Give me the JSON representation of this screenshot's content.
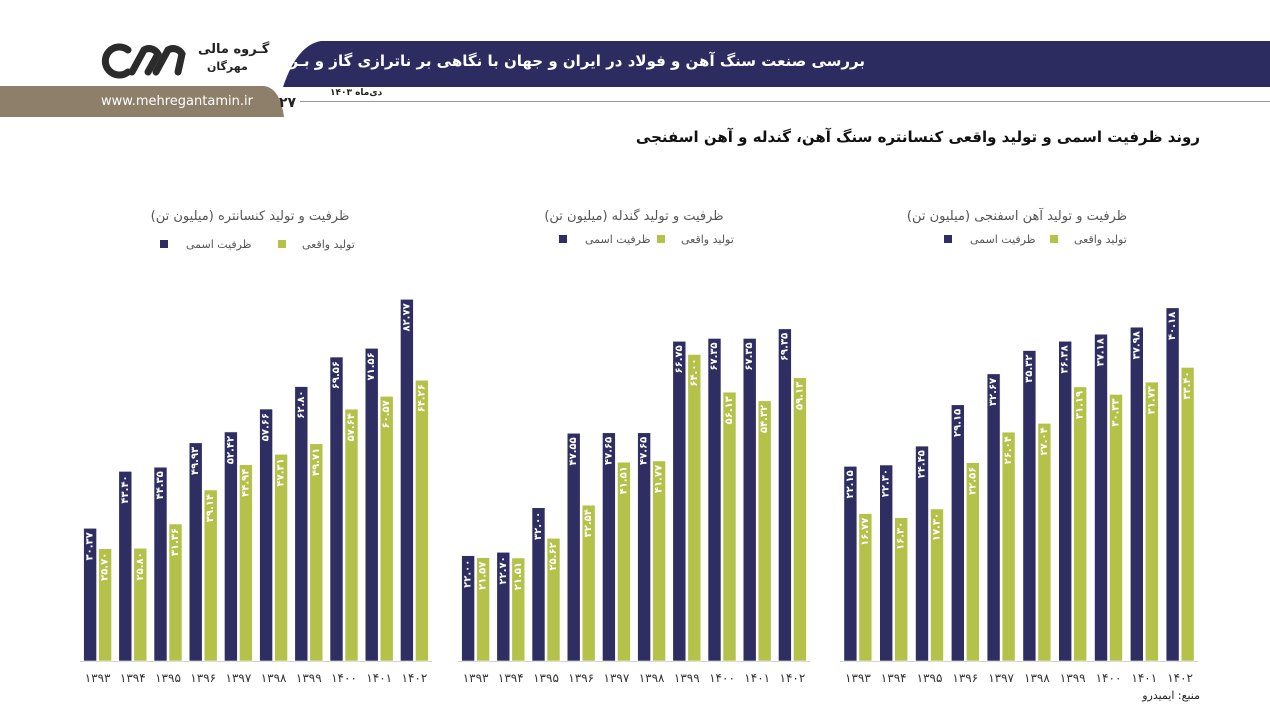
{
  "header": {
    "title": "بررسی صنعت سنگ آهن و فولاد در ایران و جهان با نگاهی بر ناترازی گاز و بـرق در صنعت فولاد",
    "date": "دی‌ماه ۱۴۰۳",
    "website": "www.mehregantamin.ir",
    "page_number": "۲۷",
    "logo_line1": "گـروه مالی",
    "logo_line2": "مهرگان",
    "band_color": "#2c2c60",
    "brown_color": "#8e7f6a"
  },
  "section_title": "روند ظرفیت اسمی و تولید واقعی کنسانتره سنگ آهن، گندله و آهن اسفنجی",
  "source": "منبع: ایمیدرو",
  "colors": {
    "nominal": "#2e2e62",
    "actual": "#b4c24a"
  },
  "chart_data": [
    {
      "type": "bar",
      "title": "ظرفیت و تولید کنسانتره (میلیون تن)",
      "categories": [
        "۱۳۹۳",
        "۱۳۹۴",
        "۱۳۹۵",
        "۱۳۹۶",
        "۱۳۹۷",
        "۱۳۹۸",
        "۱۳۹۹",
        "۱۴۰۰",
        "۱۴۰۱",
        "۱۴۰۲"
      ],
      "series": [
        {
          "name": "ظرفیت اسمی",
          "values": [
            30.37,
            43.4,
            44.35,
            49.93,
            52.42,
            57.66,
            62.8,
            69.56,
            71.56,
            82.77
          ],
          "labels": [
            "۳۰.۳۷",
            "۴۳.۴۰",
            "۴۴.۳۵",
            "۴۹.۹۳",
            "۵۲.۴۲",
            "۵۷.۶۶",
            "۶۲.۸۰",
            "۶۹.۵۶",
            "۷۱.۵۶",
            "۸۲.۷۷"
          ]
        },
        {
          "name": "تولید واقعی",
          "values": [
            25.7,
            25.8,
            31.36,
            39.14,
            44.94,
            47.31,
            49.71,
            57.64,
            60.57,
            64.26
          ],
          "labels": [
            "۲۵.۷۰",
            "۲۵.۸۰",
            "۳۱.۳۶",
            "۳۹.۱۴",
            "۴۴.۹۴",
            "۴۷.۳۱",
            "۴۹.۷۱",
            "۵۷.۶۴",
            "۶۰.۵۷",
            "۶۴.۲۶"
          ]
        }
      ]
    },
    {
      "type": "bar",
      "title": "ظرفیت و تولید گندله (میلیون تن)",
      "categories": [
        "۱۳۹۳",
        "۱۳۹۴",
        "۱۳۹۵",
        "۱۳۹۶",
        "۱۳۹۷",
        "۱۳۹۸",
        "۱۳۹۹",
        "۱۴۰۰",
        "۱۴۰۱",
        "۱۴۰۲"
      ],
      "series": [
        {
          "name": "ظرفیت اسمی",
          "values": [
            22.0,
            22.7,
            32.0,
            47.55,
            47.65,
            47.65,
            66.75,
            67.35,
            67.35,
            69.35
          ],
          "labels": [
            "۲۲.۰۰",
            "۲۲.۷۰",
            "۳۲.۰۰",
            "۴۷.۵۵",
            "۴۷.۶۵",
            "۴۷.۶۵",
            "۶۶.۷۵",
            "۶۷.۳۵",
            "۶۷.۳۵",
            "۶۹.۳۵"
          ]
        },
        {
          "name": "تولید واقعی",
          "values": [
            21.57,
            21.51,
            25.62,
            32.54,
            41.51,
            41.77,
            64.0,
            56.13,
            54.32,
            59.13
          ],
          "labels": [
            "۲۱.۵۷",
            "۲۱.۵۱",
            "۲۵.۶۲",
            "۳۲.۵۴",
            "۴۱.۵۱",
            "۴۱.۷۷",
            "۶۴.۰۰",
            "۵۶.۱۳",
            "۵۴.۳۲",
            "۵۹.۱۳"
          ]
        }
      ]
    },
    {
      "type": "bar",
      "title": "ظرفیت و تولید آهن اسفنجی (میلیون تن)",
      "categories": [
        "۱۳۹۳",
        "۱۳۹۴",
        "۱۳۹۵",
        "۱۳۹۶",
        "۱۳۹۷",
        "۱۳۹۸",
        "۱۳۹۹",
        "۱۴۰۰",
        "۱۴۰۱",
        "۱۴۰۲"
      ],
      "series": [
        {
          "name": "ظرفیت اسمی",
          "values": [
            22.15,
            22.3,
            24.45,
            29.15,
            32.67,
            35.32,
            36.38,
            37.18,
            37.98,
            40.18
          ],
          "labels": [
            "۲۲.۱۵",
            "۲۲.۳۰",
            "۲۴.۴۵",
            "۲۹.۱۵",
            "۳۲.۶۷",
            "۳۵.۳۲",
            "۳۶.۳۸",
            "۳۷.۱۸",
            "۳۷.۹۸",
            "۴۰.۱۸"
          ]
        },
        {
          "name": "تولید واقعی",
          "values": [
            16.77,
            16.3,
            17.3,
            22.56,
            26.04,
            27.04,
            31.19,
            30.33,
            31.73,
            33.4
          ],
          "labels": [
            "۱۶.۷۷",
            "۱۶.۳۰",
            "۱۷.۳۰",
            "۲۲.۵۶",
            "۲۶.۰۴",
            "۲۷.۰۴",
            "۳۱.۱۹",
            "۳۰.۳۳",
            "۳۱.۷۳",
            "۳۳.۴۰"
          ]
        }
      ]
    }
  ]
}
